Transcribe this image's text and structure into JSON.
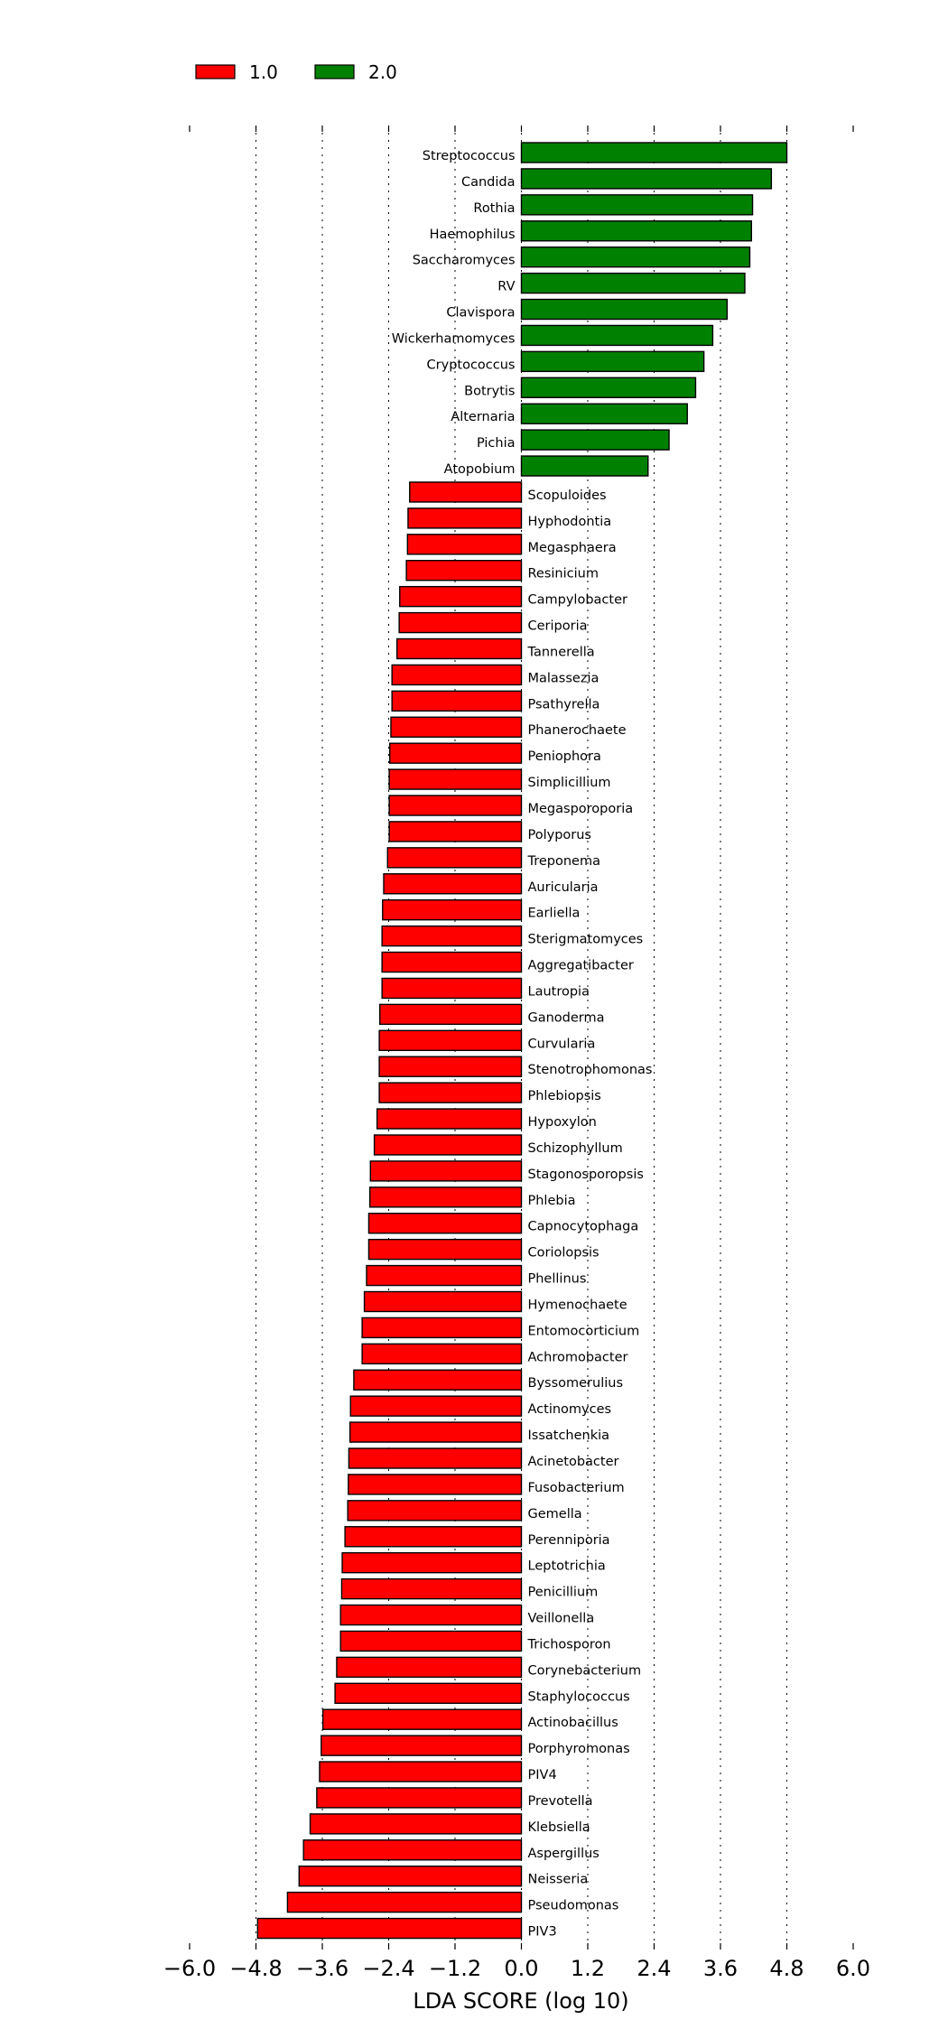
{
  "chart_data": {
    "type": "bar",
    "orientation": "horizontal",
    "xlabel": "LDA SCORE (log 10)",
    "xlim": [
      -6.0,
      6.0
    ],
    "xticks": [
      "−6.0",
      "−4.8",
      "−3.6",
      "−2.4",
      "−1.2",
      "0.0",
      "1.2",
      "2.4",
      "3.6",
      "4.8",
      "6.0"
    ],
    "tick_values": [
      -6.0,
      -4.8,
      -3.6,
      -2.4,
      -1.2,
      0.0,
      1.2,
      2.4,
      3.6,
      4.8,
      6.0
    ],
    "grid": "vertical dotted",
    "legend_position": "top-left",
    "legend": [
      {
        "label": "1.0",
        "color": "#ff0000"
      },
      {
        "label": "2.0",
        "color": "#008000"
      }
    ],
    "categories": [
      "Streptococcus",
      "Candida",
      "Rothia",
      "Haemophilus",
      "Saccharomyces",
      "RV",
      "Clavispora",
      "Wickerhamomyces",
      "Cryptococcus",
      "Botrytis",
      "Alternaria",
      "Pichia",
      "Atopobium",
      "Scopuloides",
      "Hyphodontia",
      "Megasphaera",
      "Resinicium",
      "Campylobacter",
      "Ceriporia",
      "Tannerella",
      "Malassezia",
      "Psathyrella",
      "Phanerochaete",
      "Peniophora",
      "Simplicillium",
      "Megasporoporia",
      "Polyporus",
      "Treponema",
      "Auricularia",
      "Earliella",
      "Sterigmatomyces",
      "Aggregatibacter",
      "Lautropia",
      "Ganoderma",
      "Curvularia",
      "Stenotrophomonas",
      "Phlebiopsis",
      "Hypoxylon",
      "Schizophyllum",
      "Stagonosporopsis",
      "Phlebia",
      "Capnocytophaga",
      "Coriolopsis",
      "Phellinus",
      "Hymenochaete",
      "Entomocorticium",
      "Achromobacter",
      "Byssomerulius",
      "Actinomyces",
      "Issatchenkia",
      "Acinetobacter",
      "Fusobacterium",
      "Gemella",
      "Perenniporia",
      "Leptotrichia",
      "Penicillium",
      "Veillonella",
      "Trichosporon",
      "Corynebacterium",
      "Staphylococcus",
      "Actinobacillus",
      "Porphyromonas",
      "PIV4",
      "Prevotella",
      "Klebsiella",
      "Aspergillus",
      "Neisseria",
      "Pseudomonas",
      "PIV3"
    ],
    "values": [
      4.8,
      4.52,
      4.18,
      4.16,
      4.13,
      4.04,
      3.72,
      3.46,
      3.3,
      3.15,
      3.0,
      2.67,
      2.29,
      -2.02,
      -2.05,
      -2.06,
      -2.08,
      -2.2,
      -2.21,
      -2.25,
      -2.34,
      -2.34,
      -2.36,
      -2.38,
      -2.39,
      -2.39,
      -2.39,
      -2.42,
      -2.49,
      -2.51,
      -2.52,
      -2.52,
      -2.52,
      -2.56,
      -2.57,
      -2.57,
      -2.57,
      -2.61,
      -2.66,
      -2.73,
      -2.74,
      -2.76,
      -2.76,
      -2.8,
      -2.84,
      -2.88,
      -2.88,
      -3.03,
      -3.09,
      -3.1,
      -3.12,
      -3.13,
      -3.14,
      -3.19,
      -3.24,
      -3.25,
      -3.27,
      -3.27,
      -3.34,
      -3.37,
      -3.59,
      -3.62,
      -3.65,
      -3.7,
      -3.82,
      -3.94,
      -4.02,
      -4.23,
      -4.77
    ],
    "groups": [
      "2.0",
      "2.0",
      "2.0",
      "2.0",
      "2.0",
      "2.0",
      "2.0",
      "2.0",
      "2.0",
      "2.0",
      "2.0",
      "2.0",
      "2.0",
      "1.0",
      "1.0",
      "1.0",
      "1.0",
      "1.0",
      "1.0",
      "1.0",
      "1.0",
      "1.0",
      "1.0",
      "1.0",
      "1.0",
      "1.0",
      "1.0",
      "1.0",
      "1.0",
      "1.0",
      "1.0",
      "1.0",
      "1.0",
      "1.0",
      "1.0",
      "1.0",
      "1.0",
      "1.0",
      "1.0",
      "1.0",
      "1.0",
      "1.0",
      "1.0",
      "1.0",
      "1.0",
      "1.0",
      "1.0",
      "1.0",
      "1.0",
      "1.0",
      "1.0",
      "1.0",
      "1.0",
      "1.0",
      "1.0",
      "1.0",
      "1.0",
      "1.0",
      "1.0",
      "1.0",
      "1.0",
      "1.0",
      "1.0",
      "1.0",
      "1.0",
      "1.0",
      "1.0",
      "1.0",
      "1.0"
    ]
  }
}
